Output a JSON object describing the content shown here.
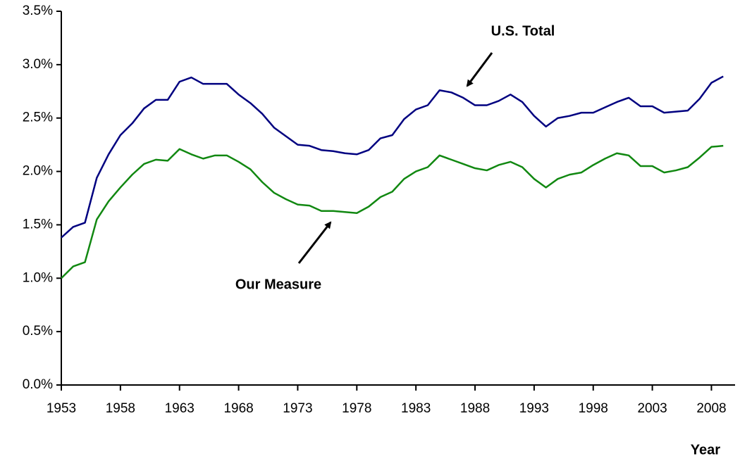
{
  "chart_data": {
    "type": "line",
    "x": [
      1953,
      1954,
      1955,
      1956,
      1957,
      1958,
      1959,
      1960,
      1961,
      1962,
      1963,
      1964,
      1965,
      1966,
      1967,
      1968,
      1969,
      1970,
      1971,
      1972,
      1973,
      1974,
      1975,
      1976,
      1977,
      1978,
      1979,
      1980,
      1981,
      1982,
      1983,
      1984,
      1985,
      1986,
      1987,
      1988,
      1989,
      1990,
      1991,
      1992,
      1993,
      1994,
      1995,
      1996,
      1997,
      1998,
      1999,
      2000,
      2001,
      2002,
      2003,
      2004,
      2005,
      2006,
      2007,
      2008,
      2009
    ],
    "series": [
      {
        "name": "U.S. Total",
        "color": "#000080",
        "values": [
          1.38,
          1.48,
          1.52,
          1.94,
          2.16,
          2.34,
          2.45,
          2.59,
          2.67,
          2.67,
          2.84,
          2.88,
          2.82,
          2.82,
          2.82,
          2.72,
          2.64,
          2.54,
          2.41,
          2.33,
          2.25,
          2.24,
          2.2,
          2.19,
          2.17,
          2.16,
          2.2,
          2.31,
          2.34,
          2.49,
          2.58,
          2.62,
          2.76,
          2.74,
          2.69,
          2.62,
          2.62,
          2.66,
          2.72,
          2.65,
          2.52,
          2.42,
          2.5,
          2.52,
          2.55,
          2.55,
          2.6,
          2.65,
          2.69,
          2.61,
          2.61,
          2.55,
          2.56,
          2.57,
          2.68,
          2.83,
          2.89
        ]
      },
      {
        "name": "Our Measure",
        "color": "#118811",
        "values": [
          1.0,
          1.11,
          1.15,
          1.55,
          1.72,
          1.85,
          1.97,
          2.07,
          2.11,
          2.1,
          2.21,
          2.16,
          2.12,
          2.15,
          2.15,
          2.09,
          2.02,
          1.9,
          1.8,
          1.74,
          1.69,
          1.68,
          1.63,
          1.63,
          1.62,
          1.61,
          1.67,
          1.76,
          1.81,
          1.93,
          2.0,
          2.04,
          2.15,
          2.11,
          2.07,
          2.03,
          2.01,
          2.06,
          2.09,
          2.04,
          1.93,
          1.85,
          1.93,
          1.97,
          1.99,
          2.06,
          2.12,
          2.17,
          2.15,
          2.05,
          2.05,
          1.99,
          2.01,
          2.04,
          2.13,
          2.23,
          2.24
        ]
      }
    ],
    "x_label": "Year",
    "xlim": [
      1953,
      2010
    ],
    "xticks": [
      1953,
      1958,
      1963,
      1968,
      1973,
      1978,
      1983,
      1988,
      1993,
      1998,
      2003,
      2008
    ],
    "ylim": [
      0,
      3.5
    ],
    "yticks": [
      {
        "value": 0,
        "label": "0.0%"
      },
      {
        "value": 0.5,
        "label": "0.5%"
      },
      {
        "value": 1,
        "label": "1.0%"
      },
      {
        "value": 1.5,
        "label": "1.5%"
      },
      {
        "value": 2,
        "label": "2.0%"
      },
      {
        "value": 2.5,
        "label": "2.5%"
      },
      {
        "value": 3,
        "label": "3.0%"
      },
      {
        "value": 3.5,
        "label": "3.5%"
      }
    ]
  }
}
